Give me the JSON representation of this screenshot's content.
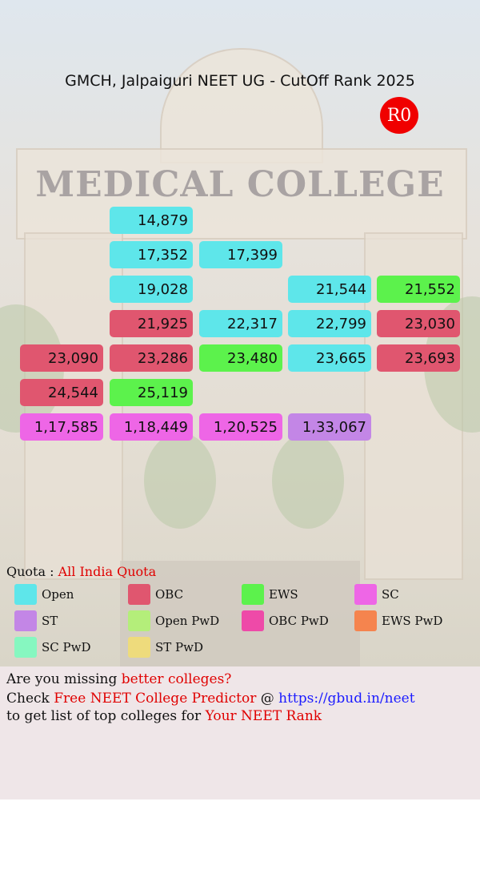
{
  "title": "GMCH, Jalpaiguri NEET UG - CutOff Rank 2025",
  "round_badge": "R0",
  "background_text": "MEDICAL COLLEGE",
  "colors": {
    "Open": "#5ee6ea",
    "OBC": "#e0566f",
    "EWS": "#5cf24c",
    "SC": "#ee66e6",
    "ST": "#c386e6",
    "Open PwD": "#b4ee7a",
    "OBC PwD": "#ee4aa8",
    "EWS PwD": "#f5844e",
    "SC PwD": "#86f7c0",
    "ST PwD": "#eedb7c"
  },
  "ranks": [
    {
      "value": "14,879",
      "category": "Open",
      "row": 0,
      "col": 1
    },
    {
      "value": "17,352",
      "category": "Open",
      "row": 1,
      "col": 1
    },
    {
      "value": "17,399",
      "category": "Open",
      "row": 1,
      "col": 2
    },
    {
      "value": "19,028",
      "category": "Open",
      "row": 2,
      "col": 1
    },
    {
      "value": "21,544",
      "category": "Open",
      "row": 2,
      "col": 3
    },
    {
      "value": "21,552",
      "category": "EWS",
      "row": 2,
      "col": 4
    },
    {
      "value": "21,925",
      "category": "OBC",
      "row": 3,
      "col": 1
    },
    {
      "value": "22,317",
      "category": "Open",
      "row": 3,
      "col": 2
    },
    {
      "value": "22,799",
      "category": "Open",
      "row": 3,
      "col": 3
    },
    {
      "value": "23,030",
      "category": "OBC",
      "row": 3,
      "col": 4
    },
    {
      "value": "23,090",
      "category": "OBC",
      "row": 4,
      "col": 0
    },
    {
      "value": "23,286",
      "category": "OBC",
      "row": 4,
      "col": 1
    },
    {
      "value": "23,480",
      "category": "EWS",
      "row": 4,
      "col": 2
    },
    {
      "value": "23,665",
      "category": "Open",
      "row": 4,
      "col": 3
    },
    {
      "value": "23,693",
      "category": "OBC",
      "row": 4,
      "col": 4
    },
    {
      "value": "24,544",
      "category": "OBC",
      "row": 5,
      "col": 0
    },
    {
      "value": "25,119",
      "category": "EWS",
      "row": 5,
      "col": 1
    },
    {
      "value": "1,17,585",
      "category": "SC",
      "row": 6,
      "col": 0
    },
    {
      "value": "1,18,449",
      "category": "SC",
      "row": 6,
      "col": 1
    },
    {
      "value": "1,20,525",
      "category": "SC",
      "row": 6,
      "col": 2
    },
    {
      "value": "1,33,067",
      "category": "ST",
      "row": 6,
      "col": 3
    }
  ],
  "legend": {
    "quota_label": "Quota : ",
    "quota_value": "All India Quota",
    "items": [
      "Open",
      "OBC",
      "EWS",
      "SC",
      "ST",
      "Open PwD",
      "OBC PwD",
      "EWS PwD",
      "SC PwD",
      "ST PwD"
    ]
  },
  "promo": {
    "line1_prefix": "Are you missing ",
    "line1_highlight": "better colleges?",
    "line2_prefix": "Check ",
    "line2_highlight": "Free NEET College Predictor",
    "line2_mid": " @ ",
    "line2_link": "https://gbud.in/neet",
    "line3_prefix": "to get list of top colleges for ",
    "line3_highlight": "Your NEET Rank"
  }
}
